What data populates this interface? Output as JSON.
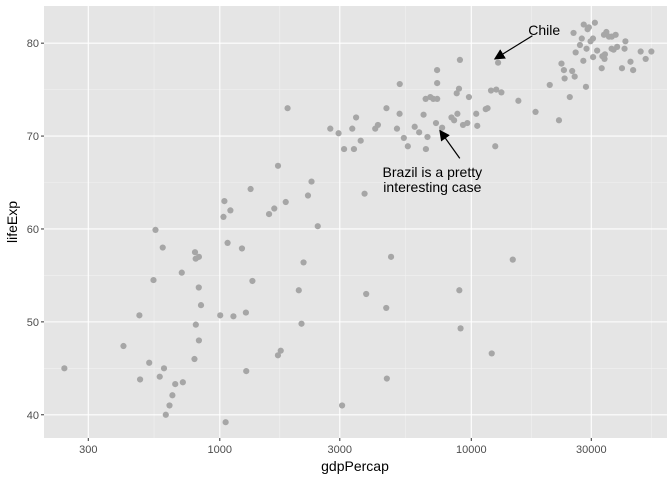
{
  "chart_data": {
    "type": "scatter",
    "title": "",
    "xlabel": "gdpPercap",
    "ylabel": "lifeExp",
    "x_scale": "log10",
    "xlim": [
      200,
      60000
    ],
    "ylim": [
      37.5,
      84
    ],
    "x_ticks": [
      300,
      1000,
      3000,
      10000,
      30000
    ],
    "x_tick_labels": [
      "300",
      "1000",
      "3000",
      "10000",
      "30000"
    ],
    "y_ticks": [
      40,
      50,
      60,
      70,
      80
    ],
    "y_tick_labels": [
      "40",
      "50",
      "60",
      "70",
      "80"
    ],
    "grid": true,
    "colors": {
      "panel": "#e5e5e5",
      "grid_major": "#ffffff",
      "grid_minor": "#f2f2f2",
      "point": "#a6a6a6",
      "text": "#4d4d4d"
    },
    "points": [
      [
        241,
        45.0
      ],
      [
        414,
        47.4
      ],
      [
        479,
        50.7
      ],
      [
        482,
        43.8
      ],
      [
        524,
        45.6
      ],
      [
        545,
        54.5
      ],
      [
        555,
        59.9
      ],
      [
        577,
        44.1
      ],
      [
        593,
        58.0
      ],
      [
        600,
        45.0
      ],
      [
        610,
        40.0
      ],
      [
        631,
        41.0
      ],
      [
        648,
        42.1
      ],
      [
        665,
        43.3
      ],
      [
        706,
        55.3
      ],
      [
        713,
        43.5
      ],
      [
        793,
        46.0
      ],
      [
        797,
        57.5
      ],
      [
        803,
        49.7
      ],
      [
        802,
        56.8
      ],
      [
        825,
        53.7
      ],
      [
        842,
        51.8
      ],
      [
        826,
        57.0
      ],
      [
        826,
        48.0
      ],
      [
        1004,
        50.7
      ],
      [
        1043,
        63.0
      ],
      [
        1034,
        61.3
      ],
      [
        1055,
        39.2
      ],
      [
        1074,
        58.5
      ],
      [
        1102,
        62.0
      ],
      [
        1133,
        50.6
      ],
      [
        1270,
        51.0
      ],
      [
        1225,
        57.9
      ],
      [
        1274,
        44.7
      ],
      [
        1326,
        64.3
      ],
      [
        1348,
        54.4
      ],
      [
        1570,
        61.6
      ],
      [
        1647,
        62.2
      ],
      [
        1703,
        46.4
      ],
      [
        1704,
        66.8
      ],
      [
        1747,
        46.9
      ],
      [
        1829,
        62.9
      ],
      [
        1860,
        73.0
      ],
      [
        2061,
        53.4
      ],
      [
        2113,
        49.8
      ],
      [
        2153,
        56.4
      ],
      [
        2242,
        63.6
      ],
      [
        2316,
        65.1
      ],
      [
        2452,
        60.3
      ],
      [
        2750,
        70.8
      ],
      [
        2967,
        70.3
      ],
      [
        3064,
        41.0
      ],
      [
        3120,
        68.6
      ],
      [
        3363,
        70.8
      ],
      [
        3415,
        68.6
      ],
      [
        3483,
        72.0
      ],
      [
        3633,
        69.5
      ],
      [
        3764,
        63.8
      ],
      [
        3820,
        53.0
      ],
      [
        4150,
        70.8
      ],
      [
        4254,
        71.2
      ],
      [
        4590,
        51.5
      ],
      [
        4599,
        73.0
      ],
      [
        4616,
        43.9
      ],
      [
        4797,
        57.0
      ],
      [
        5064,
        70.8
      ],
      [
        5186,
        72.4
      ],
      [
        5194,
        75.6
      ],
      [
        5393,
        69.8
      ],
      [
        5593,
        68.9
      ],
      [
        5956,
        71.0
      ],
      [
        6204,
        70.4
      ],
      [
        6460,
        72.3
      ],
      [
        6584,
        74.0
      ],
      [
        6600,
        68.6
      ],
      [
        6695,
        69.9
      ],
      [
        6874,
        74.2
      ],
      [
        7062,
        74.0
      ],
      [
        7238,
        71.4
      ],
      [
        7312,
        77.1
      ],
      [
        7318,
        74.0
      ],
      [
        7316,
        75.7
      ],
      [
        7656,
        70.9
      ],
      [
        8341,
        72.0
      ],
      [
        8545,
        71.7
      ],
      [
        8805,
        72.4
      ],
      [
        8749,
        74.6
      ],
      [
        9012,
        78.2
      ],
      [
        8935,
        75.1
      ],
      [
        8963,
        53.4
      ],
      [
        9065,
        49.3
      ],
      [
        9269,
        71.2
      ],
      [
        9646,
        71.4
      ],
      [
        9786,
        74.2
      ],
      [
        10461,
        72.4
      ],
      [
        10561,
        71.1
      ],
      [
        11416,
        72.9
      ],
      [
        11606,
        73.0
      ],
      [
        11978,
        74.9
      ],
      [
        12057,
        46.6
      ],
      [
        12452,
        68.9
      ],
      [
        12570,
        75.0
      ],
      [
        12780,
        77.9
      ],
      [
        13172,
        74.7
      ],
      [
        14619,
        56.7
      ],
      [
        15390,
        73.8
      ],
      [
        18009,
        72.6
      ],
      [
        20510,
        75.5
      ],
      [
        22316,
        71.7
      ],
      [
        22833,
        77.8
      ],
      [
        23348,
        77.1
      ],
      [
        24640,
        74.2
      ],
      [
        25185,
        77.0
      ],
      [
        25768,
        76.4
      ],
      [
        27042,
        79.8
      ],
      [
        27891,
        78.1
      ],
      [
        28569,
        75.3
      ],
      [
        28718,
        79.4
      ],
      [
        29796,
        80.2
      ],
      [
        29341,
        81.7
      ],
      [
        30470,
        80.5
      ],
      [
        31656,
        79.2
      ],
      [
        33208,
        78.6
      ],
      [
        33692,
        80.9
      ],
      [
        33860,
        78.3
      ],
      [
        34435,
        81.2
      ],
      [
        35278,
        80.7
      ],
      [
        36126,
        79.4
      ],
      [
        36180,
        80.7
      ],
      [
        36798,
        79.3
      ],
      [
        37506,
        80.9
      ],
      [
        39724,
        77.3
      ],
      [
        40676,
        79.4
      ],
      [
        42952,
        78.0
      ],
      [
        47143,
        79.1
      ],
      [
        49357,
        78.3
      ],
      [
        28000,
        82.0
      ],
      [
        31000,
        82.2
      ],
      [
        26000,
        79.0
      ],
      [
        34000,
        78.8
      ],
      [
        38000,
        79.6
      ],
      [
        23500,
        76.2
      ],
      [
        41000,
        80.2
      ],
      [
        44000,
        77.1
      ],
      [
        52000,
        79.1
      ],
      [
        33000,
        77.3
      ],
      [
        27500,
        80.5
      ],
      [
        30500,
        78.5
      ],
      [
        25500,
        81.1
      ],
      [
        29000,
        81.5
      ]
    ],
    "annotations": [
      {
        "text_lines": [
          "Chile"
        ],
        "text_at": [
          19500,
          80.9
        ],
        "arrow_from": [
          17500,
          80.8
        ],
        "arrow_to": [
          12400,
          78.3
        ]
      },
      {
        "text_lines": [
          "Brazil is a pretty",
          "interesting case"
        ],
        "text_at": [
          7000,
          65.6
        ],
        "arrow_from": [
          9000,
          67.6
        ],
        "arrow_to": [
          7500,
          70.6
        ]
      }
    ]
  }
}
